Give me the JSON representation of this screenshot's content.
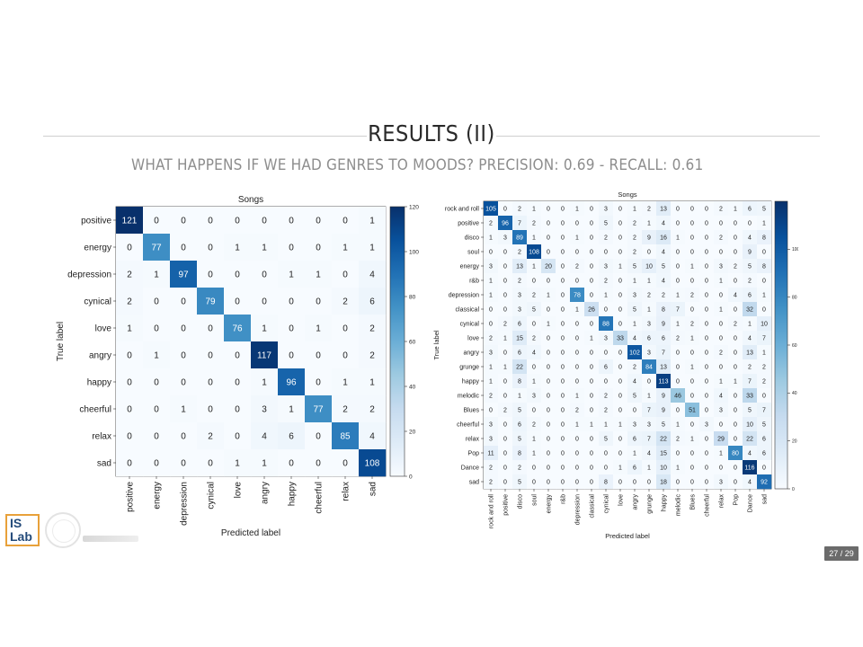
{
  "slide": {
    "title": "RESULTS (II)",
    "subtitle": "WHAT HAPPENS IF WE HAD GENRES TO MOODS?  PRECISION: 0.69 - RECALL: 0.61",
    "page": "27 / 29",
    "logo_line1": "IS",
    "logo_line2": "Lab",
    "colors": {
      "cmap_low": "#f7fbff",
      "cmap_high": "#08306b",
      "title": "#2a2a2a",
      "subtitle": "#8d8d8d"
    }
  },
  "chart_data": [
    {
      "type": "heatmap",
      "title": "Songs",
      "xlabel": "Predicted label",
      "ylabel": "True label",
      "labels": [
        "positive",
        "energy",
        "depression",
        "cynical",
        "love",
        "angry",
        "happy",
        "cheerful",
        "relax",
        "sad"
      ],
      "matrix": [
        [
          121,
          0,
          0,
          0,
          0,
          0,
          0,
          0,
          0,
          1
        ],
        [
          0,
          77,
          0,
          0,
          1,
          1,
          0,
          0,
          1,
          1
        ],
        [
          2,
          1,
          97,
          0,
          0,
          0,
          1,
          1,
          0,
          4
        ],
        [
          2,
          0,
          0,
          79,
          0,
          0,
          0,
          0,
          2,
          6
        ],
        [
          1,
          0,
          0,
          0,
          76,
          1,
          0,
          1,
          0,
          2
        ],
        [
          0,
          1,
          0,
          0,
          0,
          117,
          0,
          0,
          0,
          2
        ],
        [
          0,
          0,
          0,
          0,
          0,
          1,
          96,
          0,
          1,
          1
        ],
        [
          0,
          0,
          1,
          0,
          0,
          3,
          1,
          77,
          2,
          2
        ],
        [
          0,
          0,
          0,
          2,
          0,
          4,
          6,
          0,
          85,
          4
        ],
        [
          0,
          0,
          0,
          0,
          1,
          1,
          0,
          0,
          0,
          108
        ]
      ],
      "colorbar": {
        "min": 0,
        "max": 120,
        "ticks": [
          "0",
          "20",
          "40",
          "60",
          "80",
          "100",
          "120"
        ]
      }
    },
    {
      "type": "heatmap",
      "title": "Songs",
      "xlabel": "Predicted label",
      "ylabel": "True label",
      "labels": [
        "rock and roll",
        "positive",
        "disco",
        "soul",
        "energy",
        "r&b",
        "depression",
        "classical",
        "cynical",
        "love",
        "angry",
        "grunge",
        "happy",
        "melodic",
        "Blues",
        "cheerful",
        "relax",
        "Pop",
        "Dance",
        "sad"
      ],
      "matrix": [
        [
          105,
          0,
          2,
          1,
          0,
          0,
          1,
          0,
          3,
          0,
          1,
          2,
          13,
          0,
          0,
          0,
          2,
          1,
          6,
          5
        ],
        [
          2,
          96,
          7,
          2,
          0,
          0,
          0,
          0,
          5,
          0,
          2,
          1,
          4,
          0,
          0,
          0,
          0,
          0,
          0,
          1
        ],
        [
          1,
          3,
          89,
          1,
          0,
          0,
          1,
          0,
          2,
          0,
          2,
          9,
          16,
          1,
          0,
          0,
          2,
          0,
          4,
          8
        ],
        [
          0,
          0,
          2,
          108,
          0,
          0,
          0,
          0,
          0,
          0,
          2,
          0,
          4,
          0,
          0,
          0,
          0,
          0,
          9,
          0
        ],
        [
          3,
          0,
          13,
          1,
          20,
          0,
          2,
          0,
          3,
          1,
          5,
          10,
          5,
          0,
          1,
          0,
          3,
          2,
          5,
          8
        ],
        [
          1,
          0,
          2,
          0,
          0,
          0,
          0,
          0,
          2,
          0,
          1,
          1,
          4,
          0,
          0,
          0,
          1,
          0,
          2,
          0
        ],
        [
          1,
          0,
          3,
          2,
          1,
          0,
          78,
          0,
          1,
          0,
          3,
          2,
          2,
          1,
          2,
          0,
          0,
          4,
          6,
          1
        ],
        [
          0,
          0,
          3,
          5,
          0,
          0,
          1,
          26,
          0,
          0,
          5,
          1,
          8,
          7,
          0,
          0,
          1,
          0,
          32,
          0
        ],
        [
          0,
          2,
          6,
          0,
          1,
          0,
          0,
          0,
          88,
          0,
          1,
          3,
          9,
          1,
          2,
          0,
          0,
          2,
          1,
          10
        ],
        [
          2,
          1,
          15,
          2,
          0,
          0,
          0,
          1,
          3,
          33,
          4,
          6,
          6,
          2,
          1,
          0,
          0,
          0,
          4,
          7
        ],
        [
          3,
          0,
          6,
          4,
          0,
          0,
          0,
          0,
          0,
          0,
          102,
          3,
          7,
          0,
          0,
          0,
          2,
          0,
          13,
          1
        ],
        [
          1,
          1,
          22,
          0,
          0,
          0,
          0,
          0,
          6,
          0,
          2,
          84,
          13,
          0,
          1,
          0,
          0,
          0,
          2,
          2
        ],
        [
          1,
          0,
          8,
          1,
          0,
          0,
          0,
          0,
          0,
          0,
          4,
          0,
          113,
          0,
          0,
          0,
          1,
          1,
          7,
          2
        ],
        [
          2,
          0,
          1,
          3,
          0,
          0,
          1,
          0,
          2,
          0,
          5,
          1,
          9,
          46,
          0,
          0,
          4,
          0,
          33,
          0
        ],
        [
          0,
          2,
          5,
          0,
          0,
          0,
          2,
          0,
          2,
          0,
          0,
          7,
          9,
          0,
          51,
          0,
          3,
          0,
          5,
          7
        ],
        [
          3,
          0,
          6,
          2,
          0,
          0,
          1,
          1,
          1,
          1,
          3,
          3,
          5,
          1,
          0,
          3,
          0,
          0,
          10,
          5
        ],
        [
          3,
          0,
          5,
          1,
          0,
          0,
          0,
          0,
          5,
          0,
          6,
          7,
          22,
          2,
          1,
          0,
          29,
          0,
          22,
          6
        ],
        [
          11,
          0,
          8,
          1,
          0,
          0,
          0,
          0,
          0,
          0,
          1,
          4,
          15,
          0,
          0,
          0,
          1,
          80,
          4,
          6
        ],
        [
          2,
          0,
          2,
          0,
          0,
          0,
          0,
          0,
          0,
          1,
          6,
          1,
          10,
          1,
          0,
          0,
          0,
          0,
          116,
          0
        ],
        [
          2,
          0,
          5,
          0,
          0,
          0,
          0,
          0,
          8,
          0,
          0,
          0,
          18,
          0,
          0,
          0,
          3,
          0,
          4,
          92
        ]
      ],
      "colorbar": {
        "min": 0,
        "max": 120,
        "ticks": [
          "0",
          "20",
          "40",
          "60",
          "80",
          "100"
        ]
      }
    }
  ]
}
